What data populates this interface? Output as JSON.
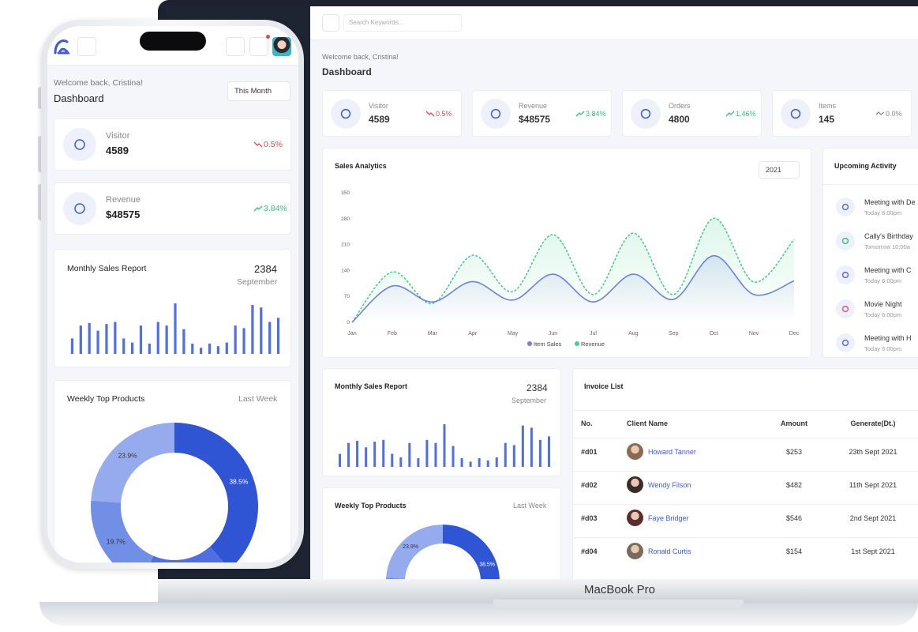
{
  "laptop": {
    "search_placeholder": "Search Keywords...",
    "welcome": "Welcome back, Cristina!",
    "title": "Dashboard",
    "stats": [
      {
        "label": "Visitor",
        "value": "4589",
        "change": "0.5%",
        "trend": "down"
      },
      {
        "label": "Revenue",
        "value": "$48575",
        "change": "3.84%",
        "trend": "up"
      },
      {
        "label": "Orders",
        "value": "4800",
        "change": "1.46%",
        "trend": "up"
      },
      {
        "label": "Items",
        "value": "145",
        "change": "0.0%",
        "trend": "flat"
      }
    ],
    "sales_analytics": {
      "type": "line",
      "title": "Sales Analytics",
      "year": "2021",
      "categories": [
        "Jan",
        "Feb",
        "Mar",
        "Apr",
        "May",
        "Jun",
        "Jul",
        "Aug",
        "Sep",
        "Oct",
        "Nov",
        "Dec"
      ],
      "ylim": [
        0,
        350
      ],
      "yticks": [
        0,
        70,
        140,
        210,
        280,
        350
      ],
      "series": [
        {
          "name": "Item Sales",
          "color": "#6f83d6",
          "values": [
            0,
            98,
            55,
            110,
            60,
            130,
            55,
            130,
            62,
            180,
            75,
            112
          ]
        },
        {
          "name": "Revenue",
          "color": "#45cf8c",
          "values": [
            0,
            136,
            51,
            181,
            83,
            237,
            75,
            241,
            75,
            281,
            109,
            224
          ]
        }
      ]
    },
    "upcoming": {
      "title": "Upcoming Activity",
      "items": [
        {
          "title": "Meeting with De",
          "time": "Today 6:00pm",
          "color": "#5b6fd6"
        },
        {
          "title": "Cally's Birthday",
          "time": "Tomorrow 10:00a",
          "color": "#3cc47c"
        },
        {
          "title": "Meeting with C",
          "time": "Today 6:00pm",
          "color": "#5b6fd6"
        },
        {
          "title": "Movie Night",
          "time": "Today 6:00pm",
          "color": "#ee5a6f"
        },
        {
          "title": "Meeting with H",
          "time": "Today 6:00pm",
          "color": "#5b6fd6"
        }
      ]
    },
    "invoice": {
      "title": "Invoice List",
      "columns": [
        "No.",
        "Client Name",
        "Amount",
        "Generate(Dt.)"
      ],
      "rows": [
        [
          "#d01",
          "Howard Tanner",
          "$253",
          "23th Sept 2021"
        ],
        [
          "#d02",
          "Wendy Filson",
          "$482",
          "11th Sept 2021"
        ],
        [
          "#d03",
          "Faye Bridger",
          "$546",
          "2nd Sept 2021"
        ],
        [
          "#d04",
          "Ronald Curtis",
          "$154",
          "1st Sept 2021"
        ]
      ]
    },
    "device_label": "MacBook Pro"
  },
  "phone": {
    "welcome": "Welcome back, Cristina!",
    "title": "Dashboard",
    "period": "This Month"
  },
  "monthly_report": {
    "type": "bar",
    "title": "Monthly Sales Report",
    "total": "2384",
    "month": "September",
    "color": "#4f6ee8",
    "values": [
      30,
      55,
      60,
      45,
      58,
      62,
      30,
      22,
      55,
      20,
      62,
      55,
      98,
      48,
      20,
      12,
      20,
      15,
      22,
      55,
      50,
      95,
      90,
      62,
      70
    ]
  },
  "weekly_products": {
    "type": "pie",
    "title": "Weekly Top Products",
    "period": "Last Week",
    "values": [
      38.5,
      17.9,
      19.7,
      23.9
    ],
    "value_labels": [
      "38.5%",
      null,
      "19.7%",
      "23.9%"
    ],
    "colors": [
      "#2f55d4",
      "#4f6fe0",
      "#728fe6",
      "#96abee"
    ]
  }
}
